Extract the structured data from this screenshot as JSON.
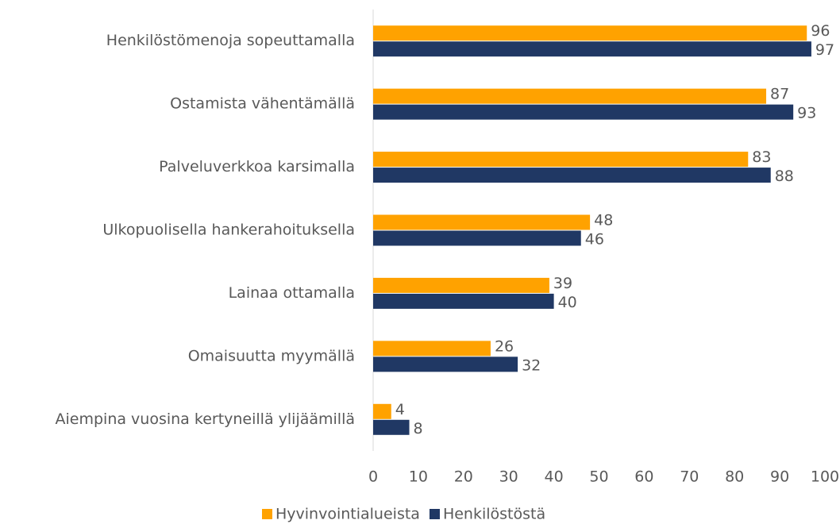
{
  "chart_data": {
    "type": "bar",
    "orientation": "horizontal",
    "categories": [
      "Henkilöstömenoja sopeuttamalla",
      "Ostamista vähentämällä",
      "Palveluverkkoa karsimalla",
      "Ulkopuolisella hankerahoituksella",
      "Lainaa ottamalla",
      "Omaisuutta myymällä",
      "Aiempina vuosina kertyneillä ylijäämillä"
    ],
    "series": [
      {
        "name": "Hyvinvointialueista",
        "color": "#ffa200",
        "values": [
          96,
          87,
          83,
          48,
          39,
          26,
          4
        ]
      },
      {
        "name": "Henkilöstöstä",
        "color": "#203864",
        "values": [
          97,
          93,
          88,
          46,
          40,
          32,
          8
        ]
      }
    ],
    "xlim": [
      0,
      100
    ],
    "xticks": [
      0,
      10,
      20,
      30,
      40,
      50,
      60,
      70,
      80,
      90,
      100
    ],
    "grid": false,
    "legend": "bottom"
  }
}
